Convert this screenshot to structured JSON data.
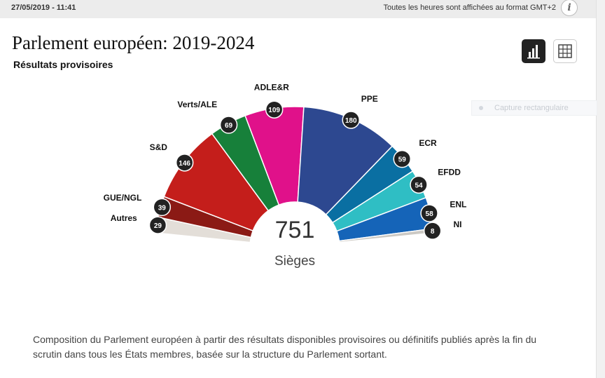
{
  "header": {
    "date": "27/05/2019 - 11:41",
    "timezone_note": "Toutes les heures sont affichées au format GMT+2",
    "info_label": "i"
  },
  "title": "Parlement européen: 2019-2024",
  "subtitle": "Résultats provisoires",
  "overlay_text": "Capture rectangulaire",
  "description": "Composition du Parlement européen à partir des résultats disponibles provisoires ou définitifs publiés après la fin du scrutin dans tous les États membres, basée sur la structure du Parlement sortant.",
  "chart_data": {
    "type": "pie",
    "subtype": "half-donut parliament chart",
    "total": 751,
    "total_label": "Sièges",
    "series": [
      {
        "name": "Autres",
        "value": 29,
        "color": "#e3ded8"
      },
      {
        "name": "GUE/NGL",
        "value": 39,
        "color": "#8b1a15"
      },
      {
        "name": "S&D",
        "value": 146,
        "color": "#c41e1b"
      },
      {
        "name": "Verts/ALE",
        "value": 69,
        "color": "#17803a"
      },
      {
        "name": "ADLE&R",
        "value": 109,
        "color": "#e0118a"
      },
      {
        "name": "PPE",
        "value": 180,
        "color": "#2d4890"
      },
      {
        "name": "ECR",
        "value": 59,
        "color": "#0a6fa2"
      },
      {
        "name": "EFDD",
        "value": 54,
        "color": "#2fbec4"
      },
      {
        "name": "ENL",
        "value": 58,
        "color": "#1564b8"
      },
      {
        "name": "NI",
        "value": 8,
        "color": "#ccc9c4"
      }
    ]
  }
}
